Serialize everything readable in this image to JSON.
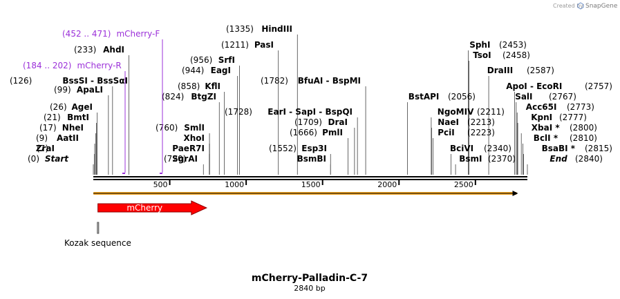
{
  "credit": {
    "prefix": "Created by",
    "brand": "SnapGene"
  },
  "map": {
    "title": "mCherry-Palladin-C-7",
    "length_label": "2840 bp",
    "length": 2840,
    "ticks": [
      {
        "value": 500,
        "label": "500"
      },
      {
        "value": 1000,
        "label": "1000"
      },
      {
        "value": 1500,
        "label": "1500"
      },
      {
        "value": 2000,
        "label": "2000"
      },
      {
        "value": 2500,
        "label": "2500"
      }
    ]
  },
  "primers": [
    {
      "name": "mCherry-F",
      "range_label": "(452 .. 471)",
      "start": 452,
      "end": 471,
      "color": "#9b30d9"
    },
    {
      "name": "mCherry-R",
      "range_label": "(184 .. 202)",
      "start": 184,
      "end": 202,
      "color": "#9b30d9"
    }
  ],
  "features": [
    {
      "name": "mCherry",
      "start": 30,
      "end": 741,
      "color": "#ff0000",
      "direction": "forward"
    },
    {
      "name": "Kozak sequence",
      "start": 24,
      "end": 33,
      "color": "#bbbbbb",
      "direction": "none"
    }
  ],
  "orf": {
    "start": 0,
    "end": 2770,
    "color": "#f5a623"
  },
  "sites": [
    {
      "pos_label": "(0)",
      "name": "Start",
      "pos": 0,
      "italic": true
    },
    {
      "pos_label": "(7)",
      "name": "ZraI",
      "pos": 7
    },
    {
      "pos_label": "(9)",
      "name": "AatII",
      "pos": 9
    },
    {
      "pos_label": "(17)",
      "name": "NheI",
      "pos": 17
    },
    {
      "pos_label": "(21)",
      "name": "BmtI",
      "pos": 21
    },
    {
      "pos_label": "(26)",
      "name": "AgeI",
      "pos": 26
    },
    {
      "pos_label": "(99)",
      "name": "ApaLI",
      "pos": 99
    },
    {
      "pos_label": "(126)",
      "name": "BssSI  -  BssSαI",
      "pos": 126
    },
    {
      "pos_label": "(233)",
      "name": "AhdI",
      "pos": 233
    },
    {
      "pos_label": "(720)",
      "name": "SgrAI",
      "pos": 720
    },
    {
      "pos_label": "",
      "name": "PaeR7I",
      "pos": 760
    },
    {
      "pos_label": "",
      "name": "XhoI",
      "pos": 760
    },
    {
      "pos_label": "(760)",
      "name": "SmlI",
      "pos": 760
    },
    {
      "pos_label": "(824)",
      "name": "BtgZI",
      "pos": 824
    },
    {
      "pos_label": "(858)",
      "name": "KflI",
      "pos": 858
    },
    {
      "pos_label": "(944)",
      "name": "EagI",
      "pos": 944
    },
    {
      "pos_label": "(956)",
      "name": "SrfI",
      "pos": 956
    },
    {
      "pos_label": "(1211)",
      "name": "PasI",
      "pos": 1211
    },
    {
      "pos_label": "(1335)",
      "name": "HindIII",
      "pos": 1335
    },
    {
      "pos_label": "(1552)",
      "name": "Esp3I",
      "pos": 1552
    },
    {
      "pos_label": "",
      "name": "BsmBI",
      "pos": 1552
    },
    {
      "pos_label": "(1666)",
      "name": "PmlI",
      "pos": 1666
    },
    {
      "pos_label": "(1709)",
      "name": "DraI",
      "pos": 1709
    },
    {
      "pos_label": "(1728)",
      "name": "EarI  -  SapI  -  BspQI",
      "pos": 1728
    },
    {
      "pos_label": "(1782)",
      "name": "BfuAI  -  BspMI",
      "pos": 1782
    },
    {
      "pos_label": "(2056)",
      "name": "BstAPI",
      "pos": 2056
    },
    {
      "pos_label": "(2211)",
      "name": "NgoMIV",
      "pos": 2211
    },
    {
      "pos_label": "(2213)",
      "name": "NaeI",
      "pos": 2213
    },
    {
      "pos_label": "(2223)",
      "name": "PciI",
      "pos": 2223
    },
    {
      "pos_label": "(2340)",
      "name": "BciVI",
      "pos": 2340
    },
    {
      "pos_label": "(2370)",
      "name": "BsmI",
      "pos": 2370
    },
    {
      "pos_label": "(2453)",
      "name": "SphI",
      "pos": 2453
    },
    {
      "pos_label": "(2458)",
      "name": "TsoI",
      "pos": 2458
    },
    {
      "pos_label": "(2587)",
      "name": "DraIII",
      "pos": 2587
    },
    {
      "pos_label": "(2757)",
      "name": "ApoI  -  EcoRI",
      "pos": 2757
    },
    {
      "pos_label": "(2767)",
      "name": "SalI",
      "pos": 2767
    },
    {
      "pos_label": "(2773)",
      "name": "Acc65I",
      "pos": 2773
    },
    {
      "pos_label": "(2777)",
      "name": "KpnI",
      "pos": 2777
    },
    {
      "pos_label": "(2800)",
      "name": "XbaI *",
      "pos": 2800
    },
    {
      "pos_label": "(2810)",
      "name": "BclI *",
      "pos": 2810
    },
    {
      "pos_label": "(2815)",
      "name": "BsaBI *",
      "pos": 2815
    },
    {
      "pos_label": "(2840)",
      "name": "End",
      "pos": 2840,
      "italic": true
    }
  ]
}
